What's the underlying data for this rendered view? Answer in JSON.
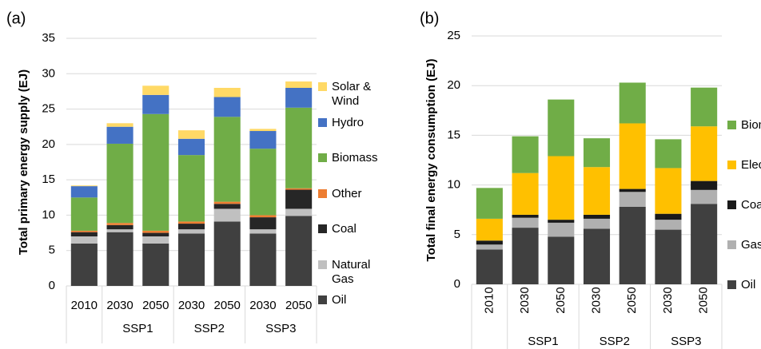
{
  "chart_data": [
    {
      "type": "stacked_bar",
      "panel_label": "(a)",
      "y_label": "Total primary energy supply (EJ)",
      "categories": [
        "2010",
        "2030",
        "2050",
        "2030",
        "2050",
        "2030",
        "2050"
      ],
      "category_groups": [
        null,
        "SSP1",
        "SSP1",
        "SSP2",
        "SSP2",
        "SSP3",
        "SSP3"
      ],
      "ylim": [
        0,
        35
      ],
      "yticks": [
        0,
        5,
        10,
        15,
        20,
        25,
        30,
        35
      ],
      "grid": true,
      "legend": "right",
      "rotate_x_labels": false,
      "series": [
        {
          "name": "Oil",
          "color": "#404040",
          "values": [
            6.0,
            7.6,
            6.0,
            7.4,
            9.1,
            7.4,
            9.9
          ]
        },
        {
          "name": "Natural Gas",
          "color": "#c0c0c0",
          "values": [
            1.0,
            0.4,
            1.0,
            0.6,
            1.8,
            0.6,
            1.0
          ]
        },
        {
          "name": "Coal",
          "color": "#262626",
          "values": [
            0.6,
            0.6,
            0.5,
            0.8,
            0.7,
            1.7,
            2.7
          ]
        },
        {
          "name": "Other",
          "color": "#ed7d31",
          "values": [
            0.2,
            0.3,
            0.3,
            0.3,
            0.3,
            0.3,
            0.2
          ]
        },
        {
          "name": "Biomass",
          "color": "#70ad47",
          "values": [
            4.7,
            11.2,
            16.5,
            9.4,
            12.0,
            9.4,
            11.4
          ]
        },
        {
          "name": "Hydro",
          "color": "#4472c4",
          "values": [
            1.6,
            2.4,
            2.7,
            2.3,
            2.8,
            2.5,
            2.8
          ]
        },
        {
          "name": "Solar & Wind",
          "color": "#ffd966",
          "values": [
            0.1,
            0.5,
            1.3,
            1.2,
            1.3,
            0.3,
            0.9
          ]
        }
      ]
    },
    {
      "type": "stacked_bar",
      "panel_label": "(b)",
      "y_label": "Total final energy consumption (EJ)",
      "categories": [
        "2010",
        "2030",
        "2050",
        "2030",
        "2050",
        "2030",
        "2050"
      ],
      "category_groups": [
        null,
        "SSP1",
        "SSP1",
        "SSP2",
        "SSP2",
        "SSP3",
        "SSP3"
      ],
      "ylim": [
        0,
        25
      ],
      "yticks": [
        0,
        5,
        10,
        15,
        20,
        25
      ],
      "grid": true,
      "legend": "right",
      "rotate_x_labels": true,
      "series": [
        {
          "name": "Oil",
          "color": "#404040",
          "values": [
            3.5,
            5.7,
            4.8,
            5.6,
            7.8,
            5.5,
            8.1
          ]
        },
        {
          "name": "Gas",
          "color": "#b0b0b0",
          "values": [
            0.5,
            1.0,
            1.4,
            1.0,
            1.5,
            1.0,
            1.4
          ]
        },
        {
          "name": "Coal",
          "color": "#1a1a1a",
          "values": [
            0.4,
            0.3,
            0.3,
            0.4,
            0.3,
            0.6,
            0.9
          ]
        },
        {
          "name": "Electricity",
          "color": "#ffc000",
          "values": [
            2.2,
            4.2,
            6.4,
            4.8,
            6.6,
            4.6,
            5.5
          ]
        },
        {
          "name": "Biomass",
          "color": "#70ad47",
          "values": [
            3.1,
            3.7,
            5.7,
            2.9,
            4.1,
            2.9,
            3.9
          ]
        }
      ]
    }
  ]
}
